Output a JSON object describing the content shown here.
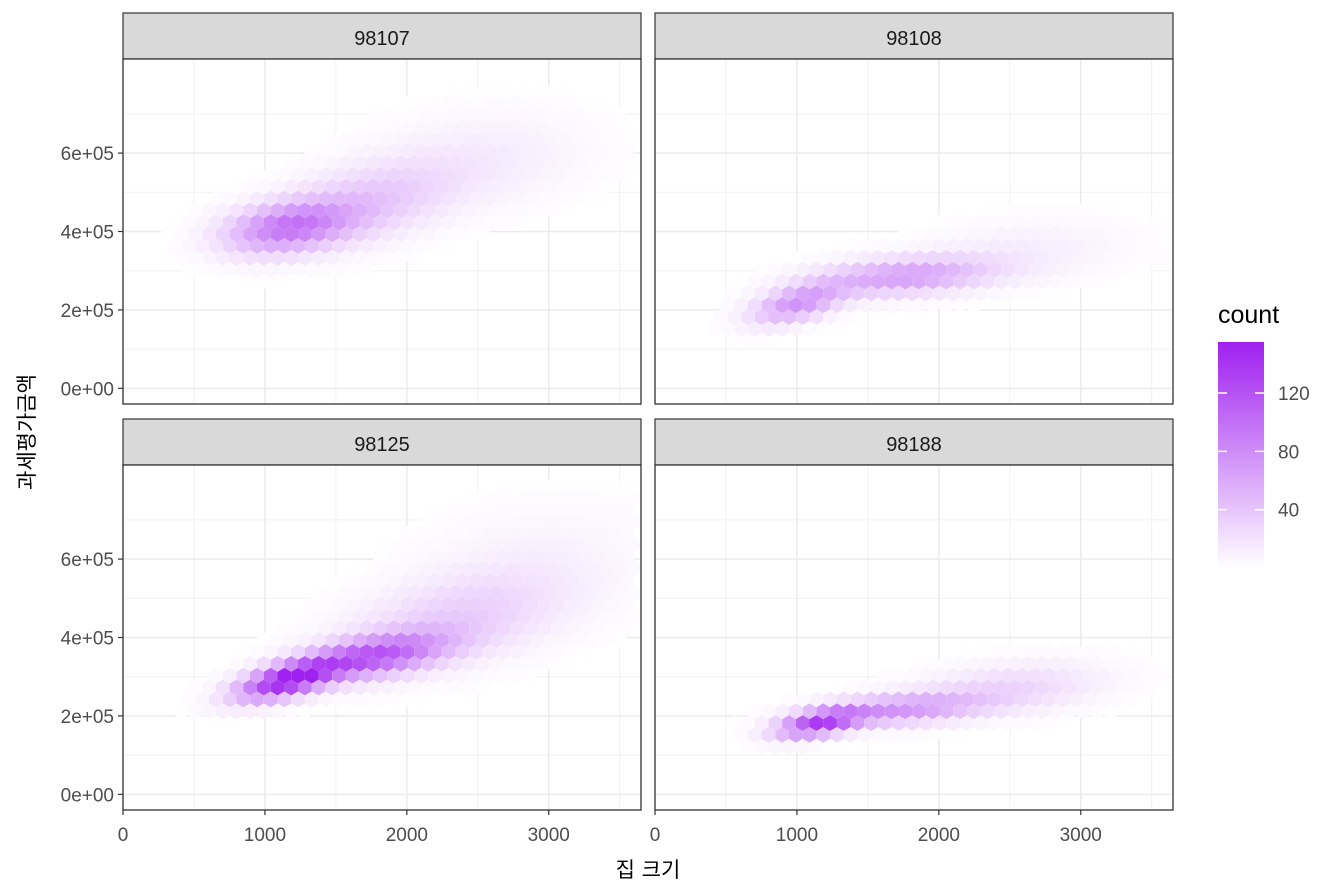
{
  "chart_data": {
    "type": "hexbin",
    "facet_by": "zipcode",
    "xlabel": "집 크기",
    "ylabel": "과세평가금액",
    "xlim": [
      0,
      3650
    ],
    "ylim": [
      -40000,
      840000
    ],
    "x_ticks": [
      0,
      1000,
      2000,
      3000
    ],
    "x_tick_labels": [
      "0",
      "1000",
      "2000",
      "3000"
    ],
    "y_ticks": [
      0,
      200000,
      400000,
      600000
    ],
    "y_tick_labels": [
      "0e+00",
      "2e+05",
      "4e+05",
      "6e+05"
    ],
    "grid": true,
    "fill_low": "#ffffff",
    "fill_high": "#a020f0",
    "legend": {
      "title": "count",
      "position": "right",
      "max": 155,
      "breaks": [
        40,
        80,
        120
      ],
      "break_labels": [
        "40",
        "80",
        "120"
      ]
    },
    "panels": [
      {
        "label": "98107",
        "clusters": [
          {
            "x": 1150,
            "y": 410000,
            "sx": 300,
            "sy": 45000,
            "rho": 0.3,
            "peak": 85
          },
          {
            "x": 1700,
            "y": 470000,
            "sx": 400,
            "sy": 70000,
            "rho": 0.4,
            "peak": 38
          },
          {
            "x": 2500,
            "y": 580000,
            "sx": 520,
            "sy": 85000,
            "rho": 0.2,
            "peak": 14
          }
        ]
      },
      {
        "label": "98108",
        "clusters": [
          {
            "x": 1000,
            "y": 215000,
            "sx": 220,
            "sy": 35000,
            "rho": 0.5,
            "peak": 72
          },
          {
            "x": 1750,
            "y": 285000,
            "sx": 420,
            "sy": 33000,
            "rho": 0.3,
            "peak": 65
          },
          {
            "x": 2600,
            "y": 350000,
            "sx": 500,
            "sy": 55000,
            "rho": 0.2,
            "peak": 12
          }
        ]
      },
      {
        "label": "98125",
        "clusters": [
          {
            "x": 1150,
            "y": 290000,
            "sx": 240,
            "sy": 35000,
            "rho": 0.6,
            "peak": 148
          },
          {
            "x": 1750,
            "y": 350000,
            "sx": 350,
            "sy": 40000,
            "rho": 0.5,
            "peak": 105
          },
          {
            "x": 2300,
            "y": 440000,
            "sx": 500,
            "sy": 80000,
            "rho": 0.4,
            "peak": 32
          },
          {
            "x": 2900,
            "y": 580000,
            "sx": 550,
            "sy": 110000,
            "rho": 0.2,
            "peak": 10
          }
        ]
      },
      {
        "label": "98188",
        "clusters": [
          {
            "x": 1150,
            "y": 180000,
            "sx": 200,
            "sy": 25000,
            "rho": 0.5,
            "peak": 118
          },
          {
            "x": 1700,
            "y": 215000,
            "sx": 400,
            "sy": 28000,
            "rho": 0.4,
            "peak": 68
          },
          {
            "x": 2500,
            "y": 270000,
            "sx": 450,
            "sy": 45000,
            "rho": 0.3,
            "peak": 28
          }
        ]
      }
    ]
  }
}
